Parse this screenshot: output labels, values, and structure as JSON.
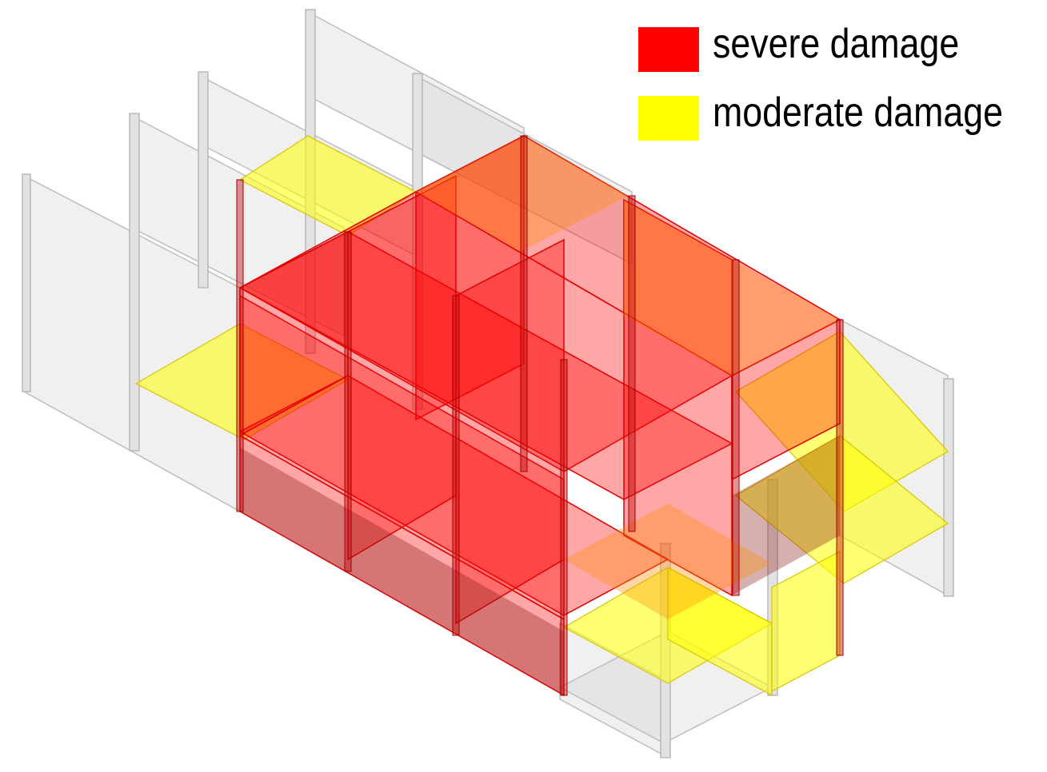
{
  "legend": {
    "items": [
      {
        "key": "severe",
        "label": "severe damage",
        "color": "#ff0000"
      },
      {
        "key": "moderate",
        "label": "moderate damage",
        "color": "#ffff00"
      }
    ]
  },
  "colors": {
    "severe": "#ff0000",
    "moderate": "#ffff00",
    "frame": "#d8d8d8",
    "glass": "#c8c8c8"
  }
}
